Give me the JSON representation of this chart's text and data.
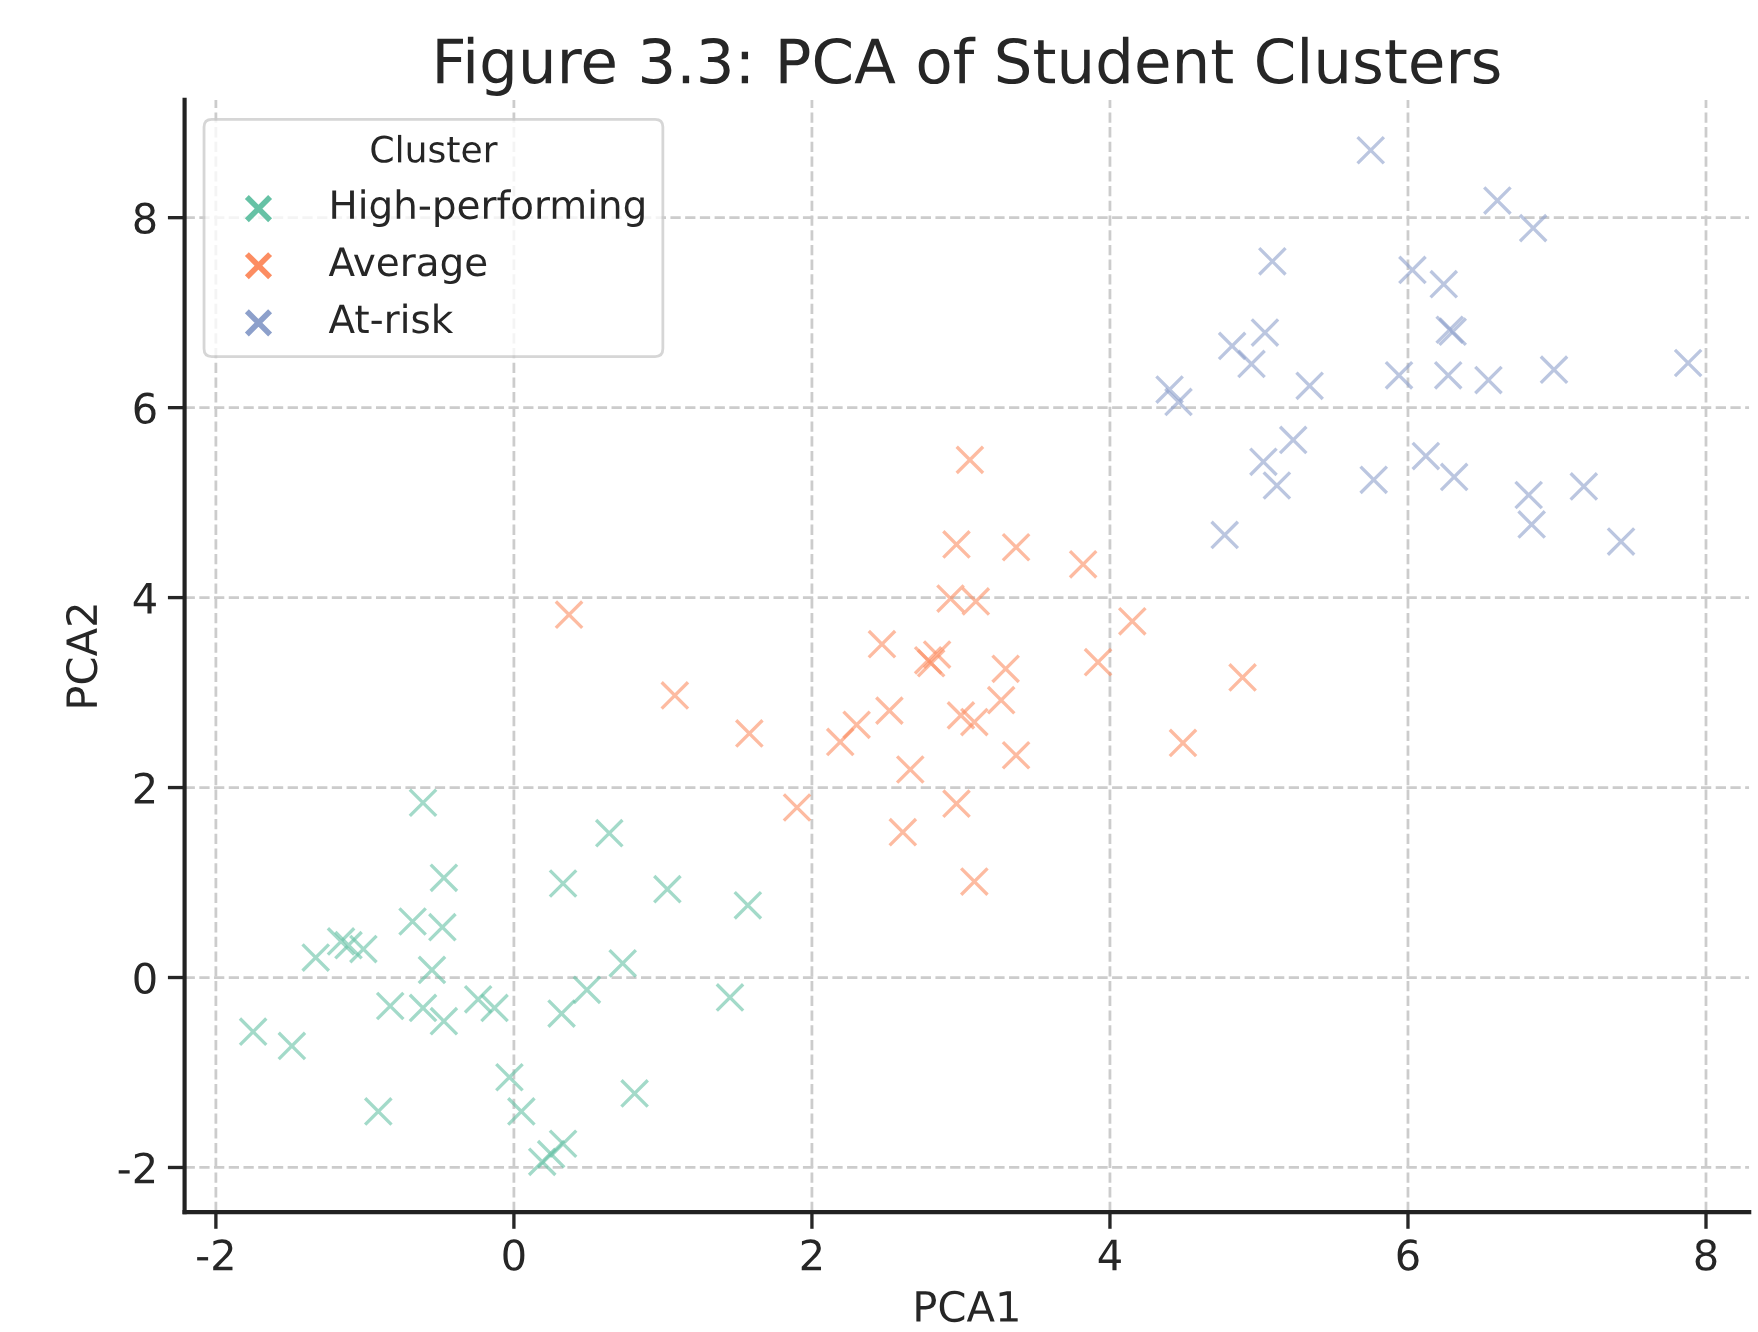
{
  "chart_data": {
    "type": "scatter",
    "title": "Figure 3.3: PCA of Student Clusters",
    "xlabel": "PCA1",
    "ylabel": "PCA2",
    "legend_title": "Cluster",
    "legend": "top left",
    "grid": true,
    "marker": "cross",
    "xlim": [
      -2.21,
      8.29
    ],
    "ylim": [
      -2.47,
      9.24
    ],
    "xticks": [
      -2,
      0,
      2,
      4,
      6,
      8
    ],
    "yticks": [
      -2,
      0,
      2,
      4,
      6,
      8
    ],
    "series": [
      {
        "name": "High-performing",
        "color": "#66c2a5",
        "x": [
          -1.75,
          -1.49,
          -1.33,
          -1.16,
          -1.11,
          -1.01,
          -0.91,
          -0.83,
          -0.68,
          -0.61,
          -0.61,
          -0.55,
          -0.47,
          -0.48,
          -0.47,
          -0.24,
          -0.13,
          -0.03,
          0.05,
          0.19,
          0.25,
          0.33,
          0.32,
          0.33,
          0.49,
          0.64,
          0.73,
          0.81,
          1.03,
          1.45,
          1.57
        ],
        "values": [
          -0.57,
          -0.72,
          0.21,
          0.38,
          0.34,
          0.3,
          -1.41,
          -0.3,
          0.59,
          1.84,
          -0.32,
          0.08,
          1.05,
          0.53,
          -0.46,
          -0.23,
          -0.32,
          -1.05,
          -1.41,
          -1.94,
          -1.86,
          -1.75,
          -0.38,
          0.99,
          -0.13,
          1.52,
          0.15,
          -1.22,
          0.93,
          -0.21,
          0.76
        ]
      },
      {
        "name": "Average",
        "color": "#fc8d62",
        "x": [
          3.06,
          2.97,
          3.37,
          3.82,
          2.93,
          3.1,
          0.37,
          4.15,
          2.47,
          2.84,
          2.78,
          2.8,
          3.3,
          3.92,
          4.89,
          1.08,
          3.27,
          2.52,
          3.0,
          3.09,
          2.3,
          2.19,
          1.58,
          3.37,
          4.49,
          2.66,
          1.9,
          2.97,
          2.61,
          3.09
        ],
        "values": [
          5.45,
          4.56,
          4.53,
          4.35,
          3.99,
          3.96,
          3.82,
          3.75,
          3.51,
          3.4,
          3.34,
          3.31,
          3.25,
          3.32,
          3.16,
          2.97,
          2.92,
          2.81,
          2.76,
          2.69,
          2.66,
          2.48,
          2.57,
          2.34,
          2.47,
          2.19,
          1.79,
          1.83,
          1.53,
          1.01
        ]
      },
      {
        "name": "At-risk",
        "color": "#8da0cb",
        "x": [
          5.75,
          6.6,
          6.84,
          5.09,
          6.03,
          6.24,
          6.28,
          6.3,
          4.82,
          5.04,
          4.95,
          7.88,
          6.98,
          5.94,
          6.27,
          6.54,
          5.34,
          4.4,
          4.46,
          5.23,
          6.12,
          5.03,
          6.31,
          5.77,
          5.12,
          7.18,
          6.81,
          6.83,
          4.77,
          7.43
        ],
        "values": [
          8.71,
          8.18,
          7.89,
          7.54,
          7.45,
          7.3,
          6.82,
          6.8,
          6.65,
          6.79,
          6.46,
          6.47,
          6.4,
          6.34,
          6.34,
          6.29,
          6.23,
          6.19,
          6.06,
          5.66,
          5.49,
          5.43,
          5.27,
          5.24,
          5.18,
          5.17,
          5.08,
          4.77,
          4.66,
          4.59
        ]
      }
    ]
  }
}
